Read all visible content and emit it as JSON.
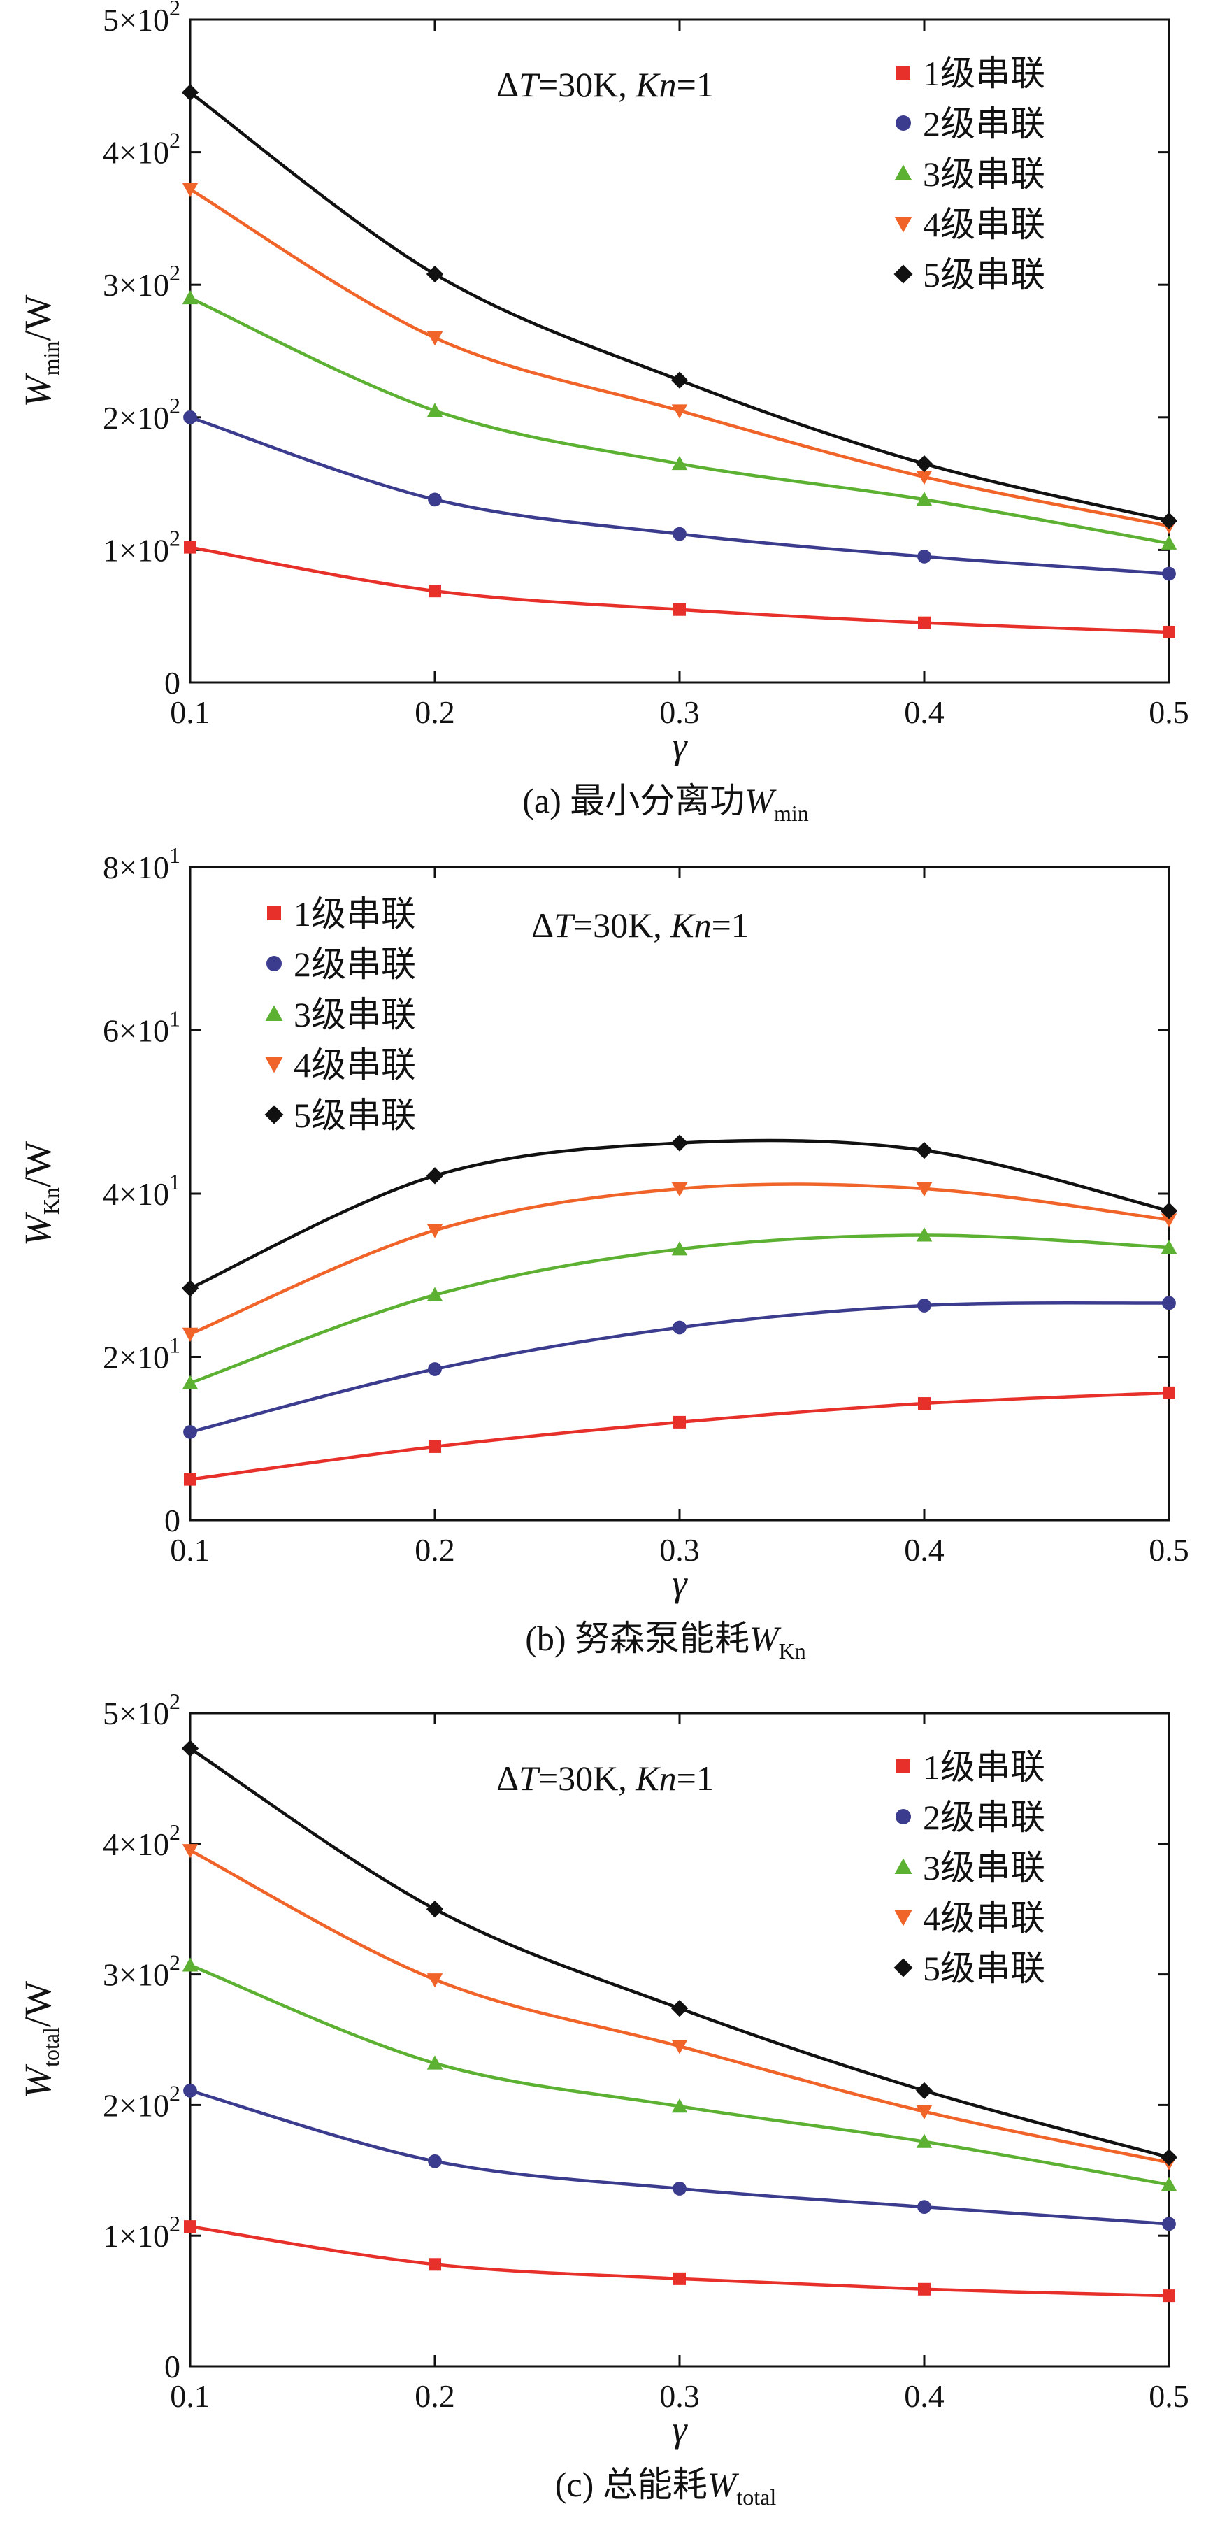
{
  "figure": {
    "subplots": [
      {
        "id": "a",
        "y_title": {
          "main": "W",
          "sub": "min",
          "unit": "/W"
        },
        "caption": {
          "prefix": "(a) 最小分离功",
          "main": "W",
          "sub": "min"
        },
        "annotation": {
          "delta": "Δ",
          "t": "T",
          "t_val": "=30K, ",
          "kn": "Kn",
          "kn_val": "=1"
        },
        "legend_position": "top-right",
        "y_tick_labels": [
          {
            "value": 0,
            "mant": "0",
            "exp": ""
          },
          {
            "value": 100,
            "mant": "1×10",
            "exp": "2"
          },
          {
            "value": 200,
            "mant": "2×10",
            "exp": "2"
          },
          {
            "value": 300,
            "mant": "3×10",
            "exp": "2"
          },
          {
            "value": 400,
            "mant": "4×10",
            "exp": "2"
          },
          {
            "value": 500,
            "mant": "5×10",
            "exp": "2"
          }
        ]
      },
      {
        "id": "b",
        "y_title": {
          "main": "W",
          "sub": "Kn",
          "unit": "/W"
        },
        "caption": {
          "prefix": "(b) 努森泵能耗",
          "main": "W",
          "sub": "Kn"
        },
        "annotation": {
          "delta": "Δ",
          "t": "T",
          "t_val": "=30K, ",
          "kn": "Kn",
          "kn_val": "=1"
        },
        "legend_position": "top-left",
        "y_tick_labels": [
          {
            "value": 0,
            "mant": "0",
            "exp": ""
          },
          {
            "value": 20,
            "mant": "2×10",
            "exp": "1"
          },
          {
            "value": 40,
            "mant": "4×10",
            "exp": "1"
          },
          {
            "value": 60,
            "mant": "6×10",
            "exp": "1"
          },
          {
            "value": 80,
            "mant": "8×10",
            "exp": "1"
          }
        ]
      },
      {
        "id": "c",
        "y_title": {
          "main": "W",
          "sub": "total",
          "unit": "/W"
        },
        "caption": {
          "prefix": "(c) 总能耗",
          "main": "W",
          "sub": "total"
        },
        "annotation": {
          "delta": "Δ",
          "t": "T",
          "t_val": "=30K, ",
          "kn": "Kn",
          "kn_val": "=1"
        },
        "legend_position": "top-right",
        "y_tick_labels": [
          {
            "value": 0,
            "mant": "0",
            "exp": ""
          },
          {
            "value": 100,
            "mant": "1×10",
            "exp": "2"
          },
          {
            "value": 200,
            "mant": "2×10",
            "exp": "2"
          },
          {
            "value": 300,
            "mant": "3×10",
            "exp": "2"
          },
          {
            "value": 400,
            "mant": "4×10",
            "exp": "2"
          },
          {
            "value": 500,
            "mant": "5×10",
            "exp": "2"
          }
        ]
      }
    ]
  },
  "chart_data": [
    {
      "type": "line",
      "title": "(a) 最小分离功Wmin",
      "xlabel": "γ",
      "ylabel": "Wmin/W",
      "x": [
        0.1,
        0.2,
        0.3,
        0.4,
        0.5
      ],
      "xlim": [
        0.1,
        0.5
      ],
      "ylim": [
        0,
        500
      ],
      "x_ticks": [
        "0.1",
        "0.2",
        "0.3",
        "0.4",
        "0.5"
      ],
      "grid": false,
      "series": [
        {
          "name": "1级串联",
          "marker": "square",
          "color": "#e8302a",
          "values": [
            102,
            69,
            55,
            45,
            38
          ]
        },
        {
          "name": "2级串联",
          "marker": "circle",
          "color": "#3c3c8f",
          "values": [
            200,
            138,
            112,
            95,
            82
          ]
        },
        {
          "name": "3级串联",
          "marker": "triangle-up",
          "color": "#5cb032",
          "values": [
            290,
            205,
            165,
            138,
            105
          ]
        },
        {
          "name": "4级串联",
          "marker": "triangle-down",
          "color": "#f0642a",
          "values": [
            372,
            260,
            205,
            155,
            118
          ]
        },
        {
          "name": "5级串联",
          "marker": "diamond",
          "color": "#111111",
          "values": [
            445,
            308,
            228,
            165,
            122
          ]
        }
      ]
    },
    {
      "type": "line",
      "title": "(b) 努森泵能耗WKn",
      "xlabel": "γ",
      "ylabel": "WKn/W",
      "x": [
        0.1,
        0.2,
        0.3,
        0.4,
        0.5
      ],
      "xlim": [
        0.1,
        0.5
      ],
      "ylim": [
        0,
        80
      ],
      "x_ticks": [
        "0.1",
        "0.2",
        "0.3",
        "0.4",
        "0.5"
      ],
      "grid": false,
      "series": [
        {
          "name": "1级串联",
          "marker": "square",
          "color": "#e8302a",
          "values": [
            5,
            9,
            12,
            14.3,
            15.6
          ]
        },
        {
          "name": "2级串联",
          "marker": "circle",
          "color": "#3c3c8f",
          "values": [
            10.8,
            18.5,
            23.6,
            26.3,
            26.6
          ]
        },
        {
          "name": "3级串联",
          "marker": "triangle-up",
          "color": "#5cb032",
          "values": [
            16.8,
            27.6,
            33.2,
            34.9,
            33.4
          ]
        },
        {
          "name": "4级串联",
          "marker": "triangle-down",
          "color": "#f0642a",
          "values": [
            22.8,
            35.5,
            40.6,
            40.6,
            36.8
          ]
        },
        {
          "name": "5级串联",
          "marker": "diamond",
          "color": "#111111",
          "values": [
            28.4,
            42.2,
            46.2,
            45.3,
            37.9
          ]
        }
      ]
    },
    {
      "type": "line",
      "title": "(c) 总能耗Wtotal",
      "xlabel": "γ",
      "ylabel": "Wtotal/W",
      "x": [
        0.1,
        0.2,
        0.3,
        0.4,
        0.5
      ],
      "xlim": [
        0.1,
        0.5
      ],
      "ylim": [
        0,
        500
      ],
      "x_ticks": [
        "0.1",
        "0.2",
        "0.3",
        "0.4",
        "0.5"
      ],
      "grid": false,
      "series": [
        {
          "name": "1级串联",
          "marker": "square",
          "color": "#e8302a",
          "values": [
            107,
            78,
            67,
            59,
            54
          ]
        },
        {
          "name": "2级串联",
          "marker": "circle",
          "color": "#3c3c8f",
          "values": [
            211,
            157,
            136,
            122,
            109
          ]
        },
        {
          "name": "3级串联",
          "marker": "triangle-up",
          "color": "#5cb032",
          "values": [
            307,
            232,
            199,
            172,
            139
          ]
        },
        {
          "name": "4级串联",
          "marker": "triangle-down",
          "color": "#f0642a",
          "values": [
            395,
            296,
            245,
            195,
            156
          ]
        },
        {
          "name": "5级串联",
          "marker": "diamond",
          "color": "#111111",
          "values": [
            473,
            350,
            274,
            211,
            160
          ]
        }
      ]
    }
  ]
}
